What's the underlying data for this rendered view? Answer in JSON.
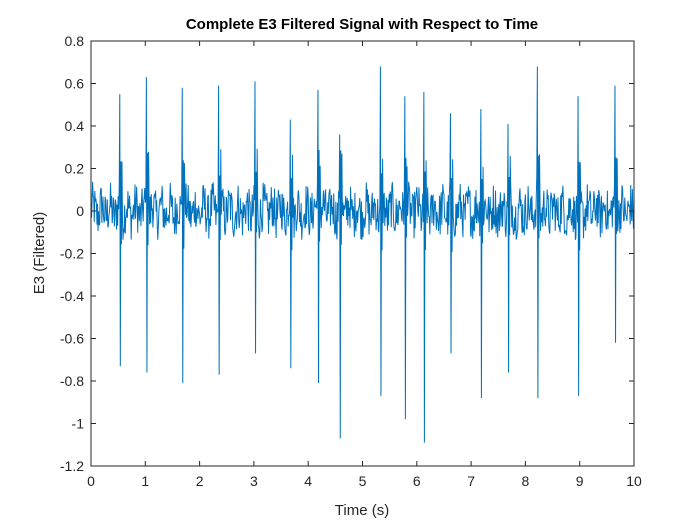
{
  "chart_data": {
    "type": "line",
    "title": "Complete E3 Filtered Signal with Respect to Time",
    "xlabel": "Time (s)",
    "ylabel": "E3 (Filtered)",
    "xlim": [
      0,
      10
    ],
    "ylim": [
      -1.2,
      0.8
    ],
    "xticks": [
      "0",
      "1",
      "2",
      "3",
      "4",
      "5",
      "6",
      "7",
      "8",
      "9",
      "10"
    ],
    "yticks": [
      "-1.2",
      "-1",
      "-0.8",
      "-0.6",
      "-0.4",
      "-0.2",
      "0",
      "0.2",
      "0.4",
      "0.6",
      "0.8"
    ],
    "grid": false,
    "series_color": "#0072BD",
    "series": [
      {
        "sample_interval_s": 0.01,
        "spikes": [
          {
            "t": 0.53,
            "max": 0.55,
            "min": -0.73
          },
          {
            "t": 1.02,
            "max": 0.63,
            "min": -0.76
          },
          {
            "t": 1.68,
            "max": 0.58,
            "min": -0.81
          },
          {
            "t": 2.35,
            "max": 0.59,
            "min": -0.77
          },
          {
            "t": 3.02,
            "max": 0.61,
            "min": -0.67
          },
          {
            "t": 3.67,
            "max": 0.43,
            "min": -0.74
          },
          {
            "t": 4.18,
            "max": 0.57,
            "min": -0.81
          },
          {
            "t": 4.58,
            "max": 0.36,
            "min": -1.07
          },
          {
            "t": 5.33,
            "max": 0.68,
            "min": -0.87
          },
          {
            "t": 5.78,
            "max": 0.54,
            "min": -0.98
          },
          {
            "t": 6.13,
            "max": 0.56,
            "min": -1.09
          },
          {
            "t": 6.62,
            "max": 0.46,
            "min": -0.67
          },
          {
            "t": 7.18,
            "max": 0.48,
            "min": -0.88
          },
          {
            "t": 7.68,
            "max": 0.41,
            "min": -0.76
          },
          {
            "t": 8.22,
            "max": 0.68,
            "min": -0.88
          },
          {
            "t": 8.97,
            "max": 0.54,
            "min": -0.87
          },
          {
            "t": 9.65,
            "max": 0.59,
            "min": -0.62
          }
        ],
        "baseline_amplitude": 0.1
      }
    ]
  }
}
